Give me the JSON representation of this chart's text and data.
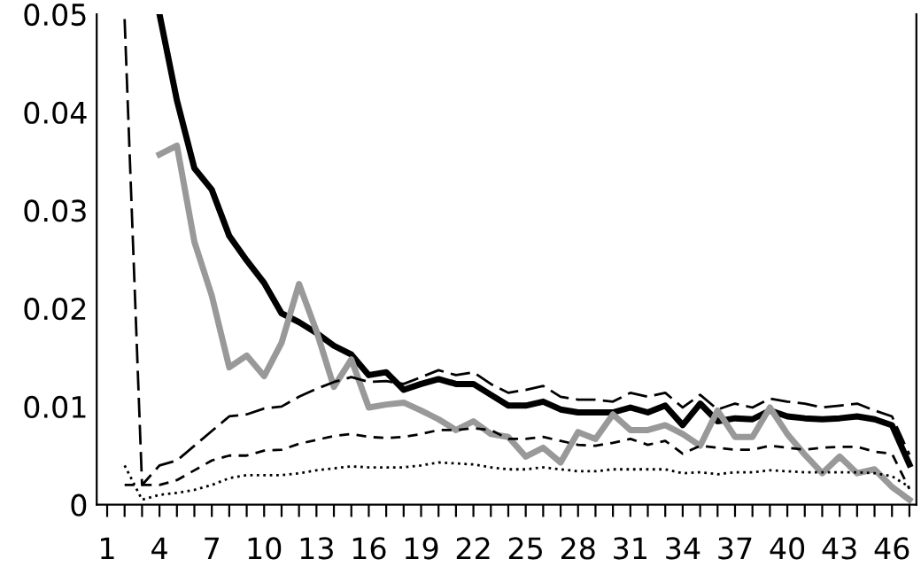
{
  "chart_data": {
    "type": "line",
    "categories": [
      "1",
      null,
      null,
      "4",
      null,
      null,
      "7",
      null,
      null,
      "10",
      null,
      null,
      "13",
      null,
      null,
      "16",
      null,
      null,
      "19",
      null,
      null,
      "22",
      null,
      null,
      "25",
      null,
      null,
      "28",
      null,
      null,
      "31",
      null,
      null,
      "34",
      null,
      null,
      "37",
      null,
      null,
      "40",
      null,
      null,
      "43",
      null,
      null,
      "46",
      null
    ],
    "ylim": [
      0,
      0.05
    ],
    "yticks": [
      0,
      0.01,
      0.02,
      0.03,
      0.04,
      0.05
    ],
    "grid": false,
    "legend": false,
    "marker": "none",
    "series": [
      {
        "color": "#000000",
        "line_style": "solid",
        "values": [
          null,
          null,
          null,
          0.05,
          0.0412,
          0.0343,
          0.0321,
          0.0274,
          0.0249,
          0.0226,
          0.0195,
          0.0186,
          0.0175,
          0.0162,
          0.0153,
          0.0132,
          0.0135,
          0.0117,
          0.0123,
          0.0128,
          0.0123,
          0.0123,
          0.0112,
          0.0101,
          0.0101,
          0.0105,
          0.0097,
          0.0094,
          0.0094,
          0.0094,
          0.0099,
          0.0094,
          0.0101,
          0.0081,
          0.0103,
          0.0085,
          0.0088,
          0.0087,
          0.0096,
          0.009,
          0.0088,
          0.0087,
          0.0088,
          0.009,
          0.0087,
          0.0081,
          0.0041
        ]
      },
      {
        "color": "#999999",
        "line_style": "solid",
        "values": [
          null,
          null,
          null,
          0.0357,
          0.0366,
          0.0268,
          0.0213,
          0.014,
          0.0152,
          0.0131,
          0.0165,
          0.0225,
          0.0177,
          0.012,
          0.0148,
          0.0099,
          0.0102,
          0.0104,
          0.0096,
          0.0087,
          0.0076,
          0.0085,
          0.0072,
          0.0069,
          0.0049,
          0.0058,
          0.0043,
          0.0074,
          0.0067,
          0.0092,
          0.0076,
          0.0076,
          0.0081,
          0.0072,
          0.006,
          0.0096,
          0.0069,
          0.0069,
          0.0099,
          0.0072,
          0.0051,
          0.0032,
          0.0049,
          0.0032,
          0.0036,
          0.0018,
          0.0005
        ]
      },
      {
        "color": "#000000",
        "line_style": "dashed",
        "values": [
          null,
          0.0495,
          0.002,
          0.004,
          0.0045,
          0.006,
          0.0075,
          0.009,
          0.0092,
          0.0098,
          0.01,
          0.011,
          0.0118,
          0.0125,
          0.013,
          0.0125,
          0.0126,
          0.0123,
          0.013,
          0.0137,
          0.0132,
          0.0135,
          0.0123,
          0.0114,
          0.0117,
          0.0121,
          0.011,
          0.0107,
          0.0107,
          0.0105,
          0.0114,
          0.011,
          0.0114,
          0.0099,
          0.0112,
          0.0097,
          0.0103,
          0.0099,
          0.0108,
          0.0105,
          0.0103,
          0.0099,
          0.0101,
          0.0103,
          0.0096,
          0.009,
          0.0051
        ]
      },
      {
        "color": "#000000",
        "line_style": "dashed",
        "values": [
          null,
          0.002,
          0.002,
          0.002,
          0.0025,
          0.0035,
          0.0045,
          0.005,
          0.005,
          0.0055,
          0.0056,
          0.0062,
          0.0066,
          0.007,
          0.0072,
          0.0069,
          0.0068,
          0.0069,
          0.0072,
          0.0076,
          0.0076,
          0.0078,
          0.0076,
          0.0067,
          0.0067,
          0.0069,
          0.0065,
          0.0061,
          0.006,
          0.0063,
          0.0067,
          0.0061,
          0.0065,
          0.0052,
          0.006,
          0.0058,
          0.0056,
          0.0056,
          0.006,
          0.0058,
          0.0056,
          0.0058,
          0.0059,
          0.0059,
          0.0054,
          0.0052,
          0.0016
        ]
      },
      {
        "color": "#000000",
        "line_style": "dotted",
        "values": [
          null,
          0.004,
          0.0005,
          0.001,
          0.0012,
          0.0015,
          0.002,
          0.0027,
          0.003,
          0.003,
          0.003,
          0.0032,
          0.0035,
          0.0037,
          0.0039,
          0.0038,
          0.0038,
          0.0038,
          0.004,
          0.0043,
          0.0042,
          0.0041,
          0.0038,
          0.0036,
          0.0036,
          0.0038,
          0.0036,
          0.0034,
          0.0034,
          0.0036,
          0.0036,
          0.0036,
          0.0036,
          0.0032,
          0.0033,
          0.0031,
          0.0033,
          0.0033,
          0.0035,
          0.0034,
          0.0033,
          0.0033,
          0.0033,
          0.0033,
          0.0032,
          0.0029,
          0.0018
        ]
      }
    ]
  }
}
